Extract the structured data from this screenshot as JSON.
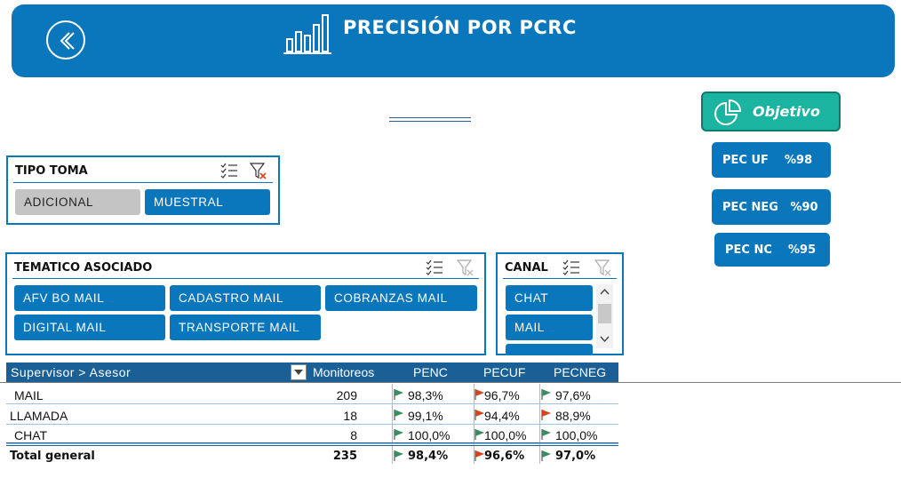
{
  "header": {
    "title": "PRECISIÓN  POR PCRC",
    "back_icon": "chevron-left-icon",
    "chart_icon": "bar-chart-icon"
  },
  "objetivo": {
    "label": "Objetivo",
    "icon": "pie-chart-icon"
  },
  "targets": [
    {
      "label": "PEC UF    %98"
    },
    {
      "label": "PEC NEG   %90"
    },
    {
      "label": "PEC NC    %95"
    }
  ],
  "tipo_toma": {
    "title": "TIPO TOMA",
    "items": [
      "ADICIONAL",
      "MUESTRAL"
    ]
  },
  "tematico": {
    "title": "TEMATICO ASOCIADO",
    "items": [
      "AFV BO MAIL",
      "CADASTRO  MAIL",
      "COBRANZAS MAIL",
      "DIGITAL MAIL",
      "TRANSPORTE MAIL"
    ]
  },
  "canal": {
    "title": "CANAL",
    "items": [
      "CHAT",
      "MAIL"
    ]
  },
  "pivot": {
    "headers": {
      "row_label": "Supervisor > Asesor",
      "monitoreos": "Monitoreos",
      "penc": "PENC",
      "pecuf": "PECUF",
      "pecneg": "PECNEG"
    },
    "rows": [
      {
        "name": "MAIL",
        "monitoreos": "209",
        "penc": "98,3%",
        "pecuf": "96,7%",
        "pecneg": "97,6%"
      },
      {
        "name": "LLAMADA",
        "monitoreos": "18",
        "penc": "99,1%",
        "pecuf": "94,4%",
        "pecneg": "88,9%"
      },
      {
        "name": "CHAT",
        "monitoreos": "8",
        "penc": "100,0%",
        "pecuf": "100,0%",
        "pecneg": "100,0%"
      }
    ],
    "total": {
      "name": "Total general",
      "monitoreos": "235",
      "penc": "98,4%",
      "pecuf": "96,6%",
      "pecneg": "97,0%"
    },
    "flag_colors": {
      "ok": "#3a8c62",
      "bad": "#d8431c"
    }
  },
  "colors": {
    "brand": "#0a76bb",
    "teal": "#1bb4a0",
    "header_row": "#1a5f96"
  }
}
